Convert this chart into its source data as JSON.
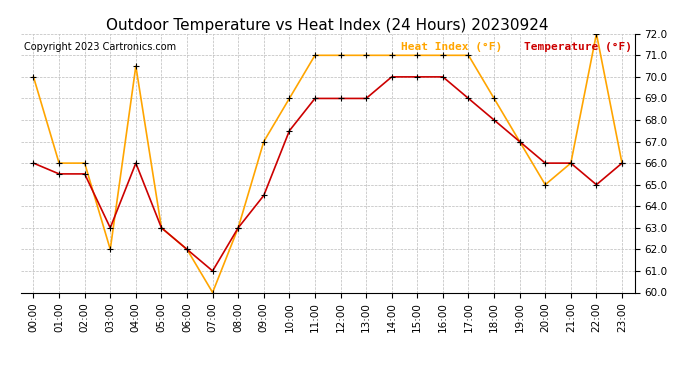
{
  "title": "Outdoor Temperature vs Heat Index (24 Hours) 20230924",
  "copyright": "Copyright 2023 Cartronics.com",
  "legend_heat_index": "Heat Index (°F)",
  "legend_temperature": "Temperature (°F)",
  "hours": [
    "00:00",
    "01:00",
    "02:00",
    "03:00",
    "04:00",
    "05:00",
    "06:00",
    "07:00",
    "08:00",
    "09:00",
    "10:00",
    "11:00",
    "12:00",
    "13:00",
    "14:00",
    "15:00",
    "16:00",
    "17:00",
    "18:00",
    "19:00",
    "20:00",
    "21:00",
    "22:00",
    "23:00"
  ],
  "heat_index": [
    70.0,
    66.0,
    66.0,
    62.0,
    70.5,
    63.0,
    62.0,
    60.0,
    63.0,
    67.0,
    69.0,
    71.0,
    71.0,
    71.0,
    71.0,
    71.0,
    71.0,
    71.0,
    69.0,
    67.0,
    65.0,
    66.0,
    72.0,
    66.0
  ],
  "temperature": [
    66.0,
    65.5,
    65.5,
    63.0,
    66.0,
    63.0,
    62.0,
    61.0,
    63.0,
    64.5,
    67.5,
    69.0,
    69.0,
    69.0,
    70.0,
    70.0,
    70.0,
    69.0,
    68.0,
    67.0,
    66.0,
    66.0,
    65.0,
    66.0
  ],
  "ylim_min": 60.0,
  "ylim_max": 72.0,
  "ytick_step": 1.0,
  "heat_index_color": "#FFA500",
  "temperature_color": "#CC0000",
  "background_color": "#ffffff",
  "grid_color": "#bbbbbb",
  "title_fontsize": 11,
  "copyright_fontsize": 7,
  "legend_fontsize": 8,
  "axis_fontsize": 7.5
}
